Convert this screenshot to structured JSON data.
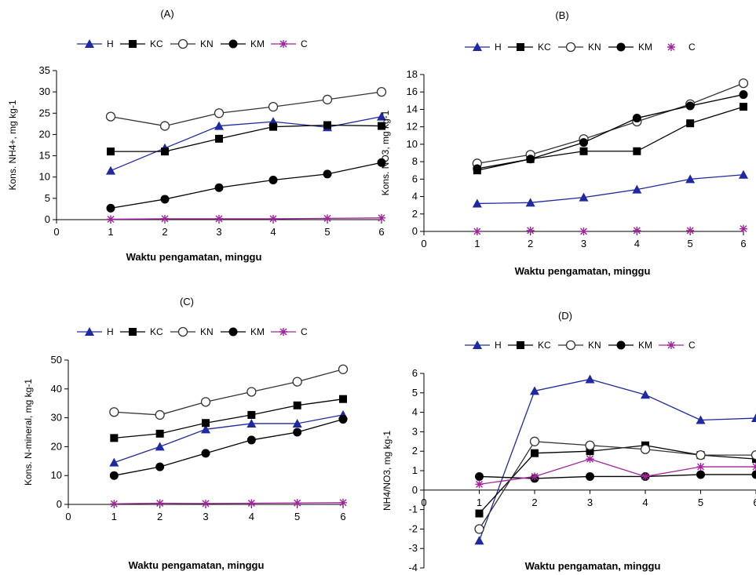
{
  "chart_data": [
    {
      "type": "line",
      "panel": "(A)",
      "title": "(A)",
      "xlabel": "Waktu pengamatan, minggu",
      "ylabel": "Kons. NH4+, mg kg-1",
      "xlim": [
        0,
        6
      ],
      "ylim": [
        0,
        35
      ],
      "xticks": [
        0,
        1,
        2,
        3,
        4,
        5,
        6
      ],
      "yticks": [
        0,
        5,
        10,
        15,
        20,
        25,
        30,
        35
      ],
      "legend_position": "top",
      "grid": false,
      "x": [
        1,
        2,
        3,
        4,
        5,
        6
      ],
      "series": [
        {
          "name": "H",
          "color": "#1f2aa0",
          "marker": "triangle",
          "values": [
            11.5,
            16.8,
            22.0,
            23.0,
            21.7,
            24.2
          ]
        },
        {
          "name": "KC",
          "color": "#000000",
          "marker": "square",
          "values": [
            16.0,
            16.0,
            19.0,
            21.8,
            22.2,
            22.0
          ]
        },
        {
          "name": "KN",
          "color": "#333333",
          "marker": "circle-open",
          "values": [
            24.2,
            22.0,
            25.0,
            26.5,
            28.2,
            30.0
          ]
        },
        {
          "name": "KM",
          "color": "#000000",
          "marker": "circle",
          "values": [
            2.7,
            4.8,
            7.5,
            9.3,
            10.7,
            13.4
          ]
        },
        {
          "name": "C",
          "color": "#a3239c",
          "marker": "star",
          "values": [
            0.1,
            0.2,
            0.2,
            0.2,
            0.3,
            0.4
          ]
        }
      ]
    },
    {
      "type": "line",
      "panel": "(B)",
      "title": "(B)",
      "xlabel": "Waktu pengamatan, minggu",
      "ylabel": "Kons. NO3, mg kg-1",
      "xlim": [
        0,
        6
      ],
      "ylim": [
        0,
        18
      ],
      "xticks": [
        0,
        1,
        2,
        3,
        4,
        5,
        6
      ],
      "yticks": [
        0,
        2,
        4,
        6,
        8,
        10,
        12,
        14,
        16,
        18
      ],
      "legend_position": "top",
      "grid": false,
      "x": [
        1,
        2,
        3,
        4,
        5,
        6
      ],
      "series": [
        {
          "name": "H",
          "color": "#1f2aa0",
          "marker": "triangle",
          "values": [
            3.2,
            3.3,
            3.9,
            4.8,
            6.0,
            6.5
          ]
        },
        {
          "name": "KC",
          "color": "#000000",
          "marker": "square",
          "values": [
            7.0,
            8.3,
            9.2,
            9.2,
            12.4,
            14.3
          ]
        },
        {
          "name": "KN",
          "color": "#333333",
          "marker": "circle-open",
          "values": [
            7.8,
            8.8,
            10.6,
            12.6,
            14.6,
            17.0
          ]
        },
        {
          "name": "KM",
          "color": "#000000",
          "marker": "circle",
          "values": [
            7.2,
            8.3,
            10.2,
            13.0,
            14.4,
            15.7
          ]
        },
        {
          "name": "C",
          "color": "#a3239c",
          "marker": "star",
          "values": [
            0.0,
            0.1,
            0.0,
            0.1,
            0.1,
            0.3
          ]
        }
      ]
    },
    {
      "type": "line",
      "panel": "(C)",
      "title": "(C)",
      "xlabel": "Waktu pengamatan, minggu",
      "ylabel": "Kons. N-mineral, mg kg-1",
      "xlim": [
        0,
        6
      ],
      "ylim": [
        0,
        50
      ],
      "xticks": [
        0,
        1,
        2,
        3,
        4,
        5,
        6
      ],
      "yticks": [
        0,
        10,
        20,
        30,
        40,
        50
      ],
      "legend_position": "top",
      "grid": false,
      "x": [
        1,
        2,
        3,
        4,
        5,
        6
      ],
      "series": [
        {
          "name": "H",
          "color": "#1f2aa0",
          "marker": "triangle",
          "values": [
            14.5,
            20.0,
            26.0,
            28.0,
            28.0,
            31.0
          ]
        },
        {
          "name": "KC",
          "color": "#000000",
          "marker": "square",
          "values": [
            23.0,
            24.5,
            28.2,
            31.0,
            34.3,
            36.5
          ]
        },
        {
          "name": "KN",
          "color": "#333333",
          "marker": "circle-open",
          "values": [
            32.0,
            31.0,
            35.5,
            39.0,
            42.5,
            46.8
          ]
        },
        {
          "name": "KM",
          "color": "#000000",
          "marker": "circle",
          "values": [
            10.0,
            13.0,
            17.7,
            22.3,
            25.0,
            29.5
          ]
        },
        {
          "name": "C",
          "color": "#a3239c",
          "marker": "star",
          "values": [
            0.2,
            0.4,
            0.3,
            0.4,
            0.5,
            0.6
          ]
        }
      ]
    },
    {
      "type": "line",
      "panel": "(D)",
      "title": "(D)",
      "xlabel": "Waktu pengamatan, minggu",
      "ylabel": "NH4/NO3, mg kg-1",
      "xlim": [
        0,
        6
      ],
      "ylim": [
        -4,
        6
      ],
      "xticks": [
        0,
        1,
        2,
        3,
        4,
        5,
        6
      ],
      "yticks": [
        -4,
        -3,
        -2,
        -1,
        0,
        1,
        2,
        3,
        4,
        5,
        6
      ],
      "legend_position": "top",
      "grid": false,
      "x": [
        1,
        2,
        3,
        4,
        5,
        6
      ],
      "series": [
        {
          "name": "H",
          "color": "#1f2aa0",
          "marker": "triangle",
          "values": [
            -2.6,
            5.1,
            5.7,
            4.9,
            3.6,
            3.7
          ]
        },
        {
          "name": "KC",
          "color": "#000000",
          "marker": "square",
          "values": [
            -1.2,
            1.9,
            2.0,
            2.3,
            1.8,
            1.6
          ]
        },
        {
          "name": "KN",
          "color": "#333333",
          "marker": "circle-open",
          "values": [
            -2.0,
            2.5,
            2.3,
            2.1,
            1.8,
            1.8
          ]
        },
        {
          "name": "KM",
          "color": "#000000",
          "marker": "circle",
          "values": [
            0.7,
            0.6,
            0.7,
            0.7,
            0.8,
            0.8
          ]
        },
        {
          "name": "C",
          "color": "#a3239c",
          "marker": "star",
          "values": [
            0.3,
            0.7,
            1.6,
            0.7,
            1.2,
            1.2
          ]
        }
      ]
    }
  ]
}
